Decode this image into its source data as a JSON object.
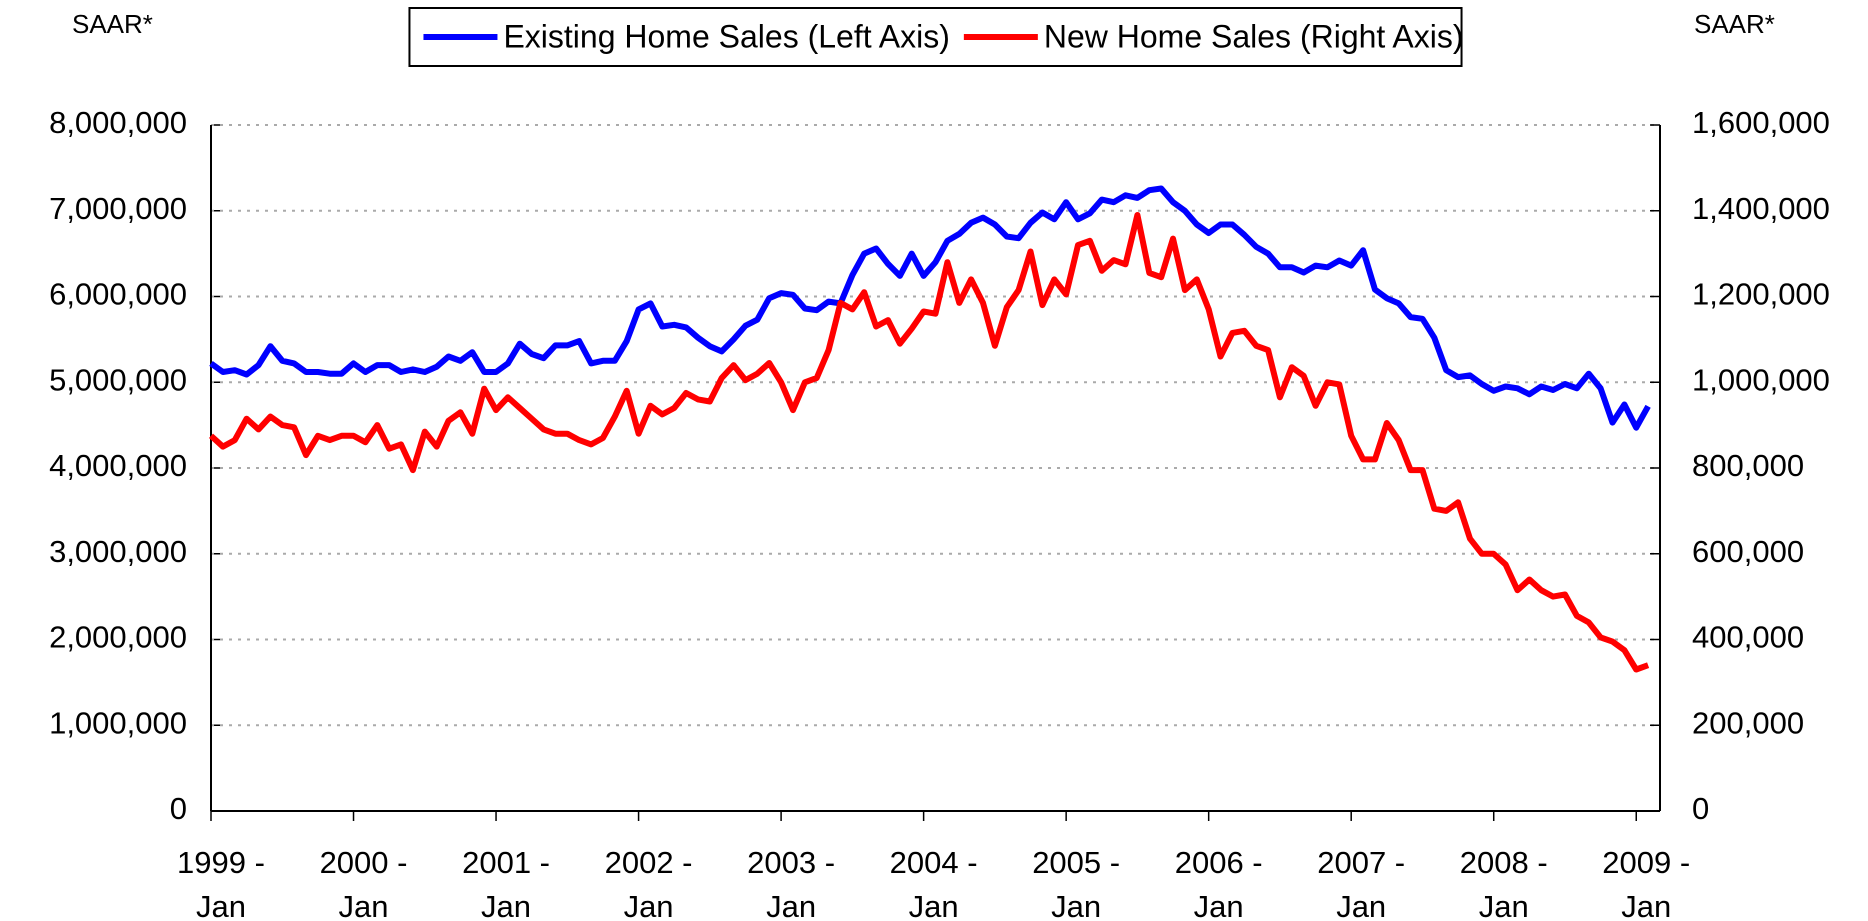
{
  "chart_data": {
    "type": "line",
    "y_label": "SAAR*",
    "y2_label": "SAAR*",
    "categories": [
      "1999 - Jan",
      null,
      null,
      null,
      null,
      null,
      null,
      null,
      null,
      null,
      null,
      null,
      "2000 - Jan",
      null,
      null,
      null,
      null,
      null,
      null,
      null,
      null,
      null,
      null,
      null,
      "2001 - Jan",
      null,
      null,
      null,
      null,
      null,
      null,
      null,
      null,
      null,
      null,
      null,
      "2002 - Jan",
      null,
      null,
      null,
      null,
      null,
      null,
      null,
      null,
      null,
      null,
      null,
      "2003 - Jan",
      null,
      null,
      null,
      null,
      null,
      null,
      null,
      null,
      null,
      null,
      null,
      "2004 - Jan",
      null,
      null,
      null,
      null,
      null,
      null,
      null,
      null,
      null,
      null,
      null,
      "2005 - Jan",
      null,
      null,
      null,
      null,
      null,
      null,
      null,
      null,
      null,
      null,
      null,
      "2006 - Jan",
      null,
      null,
      null,
      null,
      null,
      null,
      null,
      null,
      null,
      null,
      null,
      "2007 - Jan",
      null,
      null,
      null,
      null,
      null,
      null,
      null,
      null,
      null,
      null,
      null,
      "2008 - Jan",
      null,
      null,
      null,
      null,
      null,
      null,
      null,
      null,
      null,
      null,
      null,
      "2009 - Jan",
      null
    ],
    "series": [
      {
        "name": "Existing Home Sales (Left Axis)",
        "color": "#0000ff",
        "axis": "y",
        "values": [
          5220000,
          5120000,
          5140000,
          5090000,
          5200000,
          5420000,
          5250000,
          5220000,
          5120000,
          5120000,
          5100000,
          5100000,
          5220000,
          5120000,
          5200000,
          5200000,
          5120000,
          5150000,
          5120000,
          5180000,
          5300000,
          5250000,
          5350000,
          5120000,
          5120000,
          5220000,
          5450000,
          5330000,
          5280000,
          5430000,
          5430000,
          5480000,
          5220000,
          5250000,
          5250000,
          5480000,
          5850000,
          5920000,
          5650000,
          5670000,
          5640000,
          5520000,
          5420000,
          5360000,
          5500000,
          5660000,
          5730000,
          5980000,
          6040000,
          6020000,
          5860000,
          5840000,
          5940000,
          5920000,
          6250000,
          6500000,
          6560000,
          6380000,
          6240000,
          6500000,
          6240000,
          6400000,
          6650000,
          6730000,
          6860000,
          6920000,
          6840000,
          6700000,
          6680000,
          6860000,
          6980000,
          6900000,
          7100000,
          6900000,
          6970000,
          7130000,
          7100000,
          7180000,
          7150000,
          7240000,
          7260000,
          7100000,
          7000000,
          6840000,
          6740000,
          6840000,
          6840000,
          6720000,
          6580000,
          6500000,
          6340000,
          6340000,
          6280000,
          6360000,
          6340000,
          6420000,
          6360000,
          6540000,
          6080000,
          5980000,
          5920000,
          5760000,
          5740000,
          5520000,
          5140000,
          5060000,
          5080000,
          4980000,
          4900000,
          4950000,
          4930000,
          4860000,
          4950000,
          4910000,
          4980000,
          4930000,
          5100000,
          4930000,
          4530000,
          4740000,
          4470000,
          4720000
        ]
      },
      {
        "name": "New Home Sales (Right Axis)",
        "color": "#ff0000",
        "axis": "y2",
        "values": [
          875000,
          850000,
          865000,
          915000,
          890000,
          920000,
          900000,
          895000,
          830000,
          875000,
          865000,
          875000,
          875000,
          860000,
          900000,
          845000,
          855000,
          795000,
          885000,
          850000,
          910000,
          930000,
          880000,
          985000,
          935000,
          965000,
          940000,
          915000,
          890000,
          880000,
          880000,
          865000,
          855000,
          870000,
          920000,
          980000,
          880000,
          945000,
          925000,
          940000,
          975000,
          960000,
          955000,
          1010000,
          1040000,
          1005000,
          1020000,
          1045000,
          1000000,
          935000,
          1000000,
          1010000,
          1075000,
          1185000,
          1170000,
          1210000,
          1130000,
          1145000,
          1090000,
          1125000,
          1165000,
          1160000,
          1280000,
          1185000,
          1240000,
          1185000,
          1085000,
          1175000,
          1215000,
          1305000,
          1180000,
          1240000,
          1205000,
          1320000,
          1330000,
          1260000,
          1285000,
          1275000,
          1390000,
          1255000,
          1245000,
          1335000,
          1215000,
          1240000,
          1170000,
          1060000,
          1115000,
          1120000,
          1085000,
          1075000,
          965000,
          1035000,
          1015000,
          945000,
          1000000,
          995000,
          875000,
          820000,
          820000,
          905000,
          865000,
          795000,
          795000,
          705000,
          700000,
          720000,
          635000,
          600000,
          600000,
          575000,
          515000,
          540000,
          515000,
          500000,
          505000,
          455000,
          440000,
          405000,
          395000,
          375000,
          330000,
          340000
        ]
      }
    ],
    "ylim": [
      0,
      8000000
    ],
    "yticks": [
      0,
      {
        "value": 1000000,
        "label": "1,000,000"
      },
      {
        "value": 2000000,
        "label": "2,000,000"
      },
      {
        "value": 3000000,
        "label": "3,000,000"
      },
      {
        "value": 4000000,
        "label": "4,000,000"
      },
      {
        "value": 5000000,
        "label": "5,000,000"
      },
      {
        "value": 6000000,
        "label": "6,000,000"
      },
      {
        "value": 7000000,
        "label": "7,000,000"
      },
      {
        "value": 8000000,
        "label": "8,000,000"
      }
    ],
    "y2lim": [
      0,
      1600000
    ],
    "y2ticks": [
      0,
      {
        "value": 200000,
        "label": "200,000"
      },
      {
        "value": 400000,
        "label": "400,000"
      },
      {
        "value": 600000,
        "label": "600,000"
      },
      {
        "value": 800000,
        "label": "800,000"
      },
      {
        "value": 1000000,
        "label": "1,000,000"
      },
      {
        "value": 1200000,
        "label": "1,200,000"
      },
      {
        "value": 1400000,
        "label": "1,400,000"
      },
      {
        "value": 1600000,
        "label": "1,600,000"
      }
    ],
    "grid": true,
    "legend": "top"
  }
}
